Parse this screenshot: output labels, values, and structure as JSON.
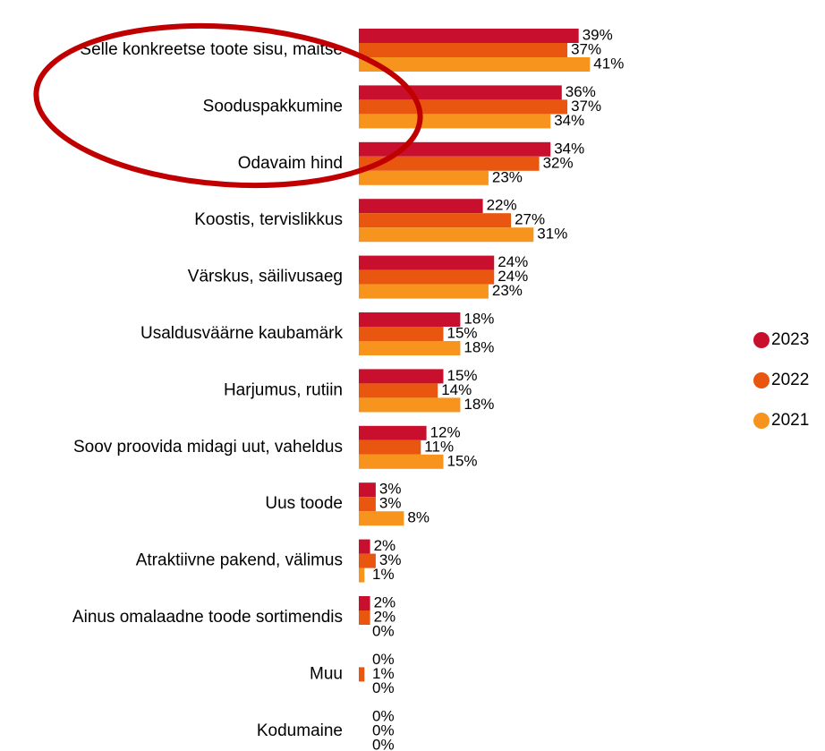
{
  "chart_data": {
    "type": "bar",
    "orientation": "horizontal",
    "categories": [
      "Selle konkreetse toote sisu, maitse",
      "Sooduspakkumine",
      "Odavaim hind",
      "Koostis, tervislikkus",
      "Värskus, säilivusaeg",
      "Usaldusväärne kaubamärk",
      "Harjumus, rutiin",
      "Soov proovida midagi uut, vaheldus",
      "Uus toode",
      "Atraktiivne pakend, välimus",
      "Ainus omalaadne toode sortimendis",
      "Muu",
      "Kodumaine"
    ],
    "series": [
      {
        "name": "2023",
        "color": "#c8102e",
        "values": [
          39,
          36,
          34,
          22,
          24,
          18,
          15,
          12,
          3,
          2,
          2,
          0,
          0
        ],
        "value_labels": [
          "39%",
          "36%",
          "34%",
          "22%",
          "24%",
          "18%",
          "15%",
          "12%",
          "3%",
          "2%",
          "2%",
          "0%",
          "0%"
        ]
      },
      {
        "name": "2022",
        "color": "#e8560f",
        "values": [
          37,
          37,
          32,
          27,
          24,
          15,
          14,
          11,
          3,
          3,
          2,
          1,
          0
        ],
        "value_labels": [
          "37%",
          "37%",
          "32%",
          "27%",
          "24%",
          "15%",
          "14%",
          "11%",
          "3%",
          "3%",
          "2%",
          "1%",
          "0%"
        ]
      },
      {
        "name": "2021",
        "color": "#f7941d",
        "values": [
          41,
          34,
          23,
          31,
          23,
          18,
          18,
          15,
          8,
          1,
          0,
          0,
          0
        ],
        "value_labels": [
          "41%",
          "34%",
          "23%",
          "31%",
          "23%",
          "18%",
          "18%",
          "15%",
          "8%",
          "1%",
          "0%",
          "0%",
          "0%"
        ]
      }
    ],
    "legend": "right"
  }
}
